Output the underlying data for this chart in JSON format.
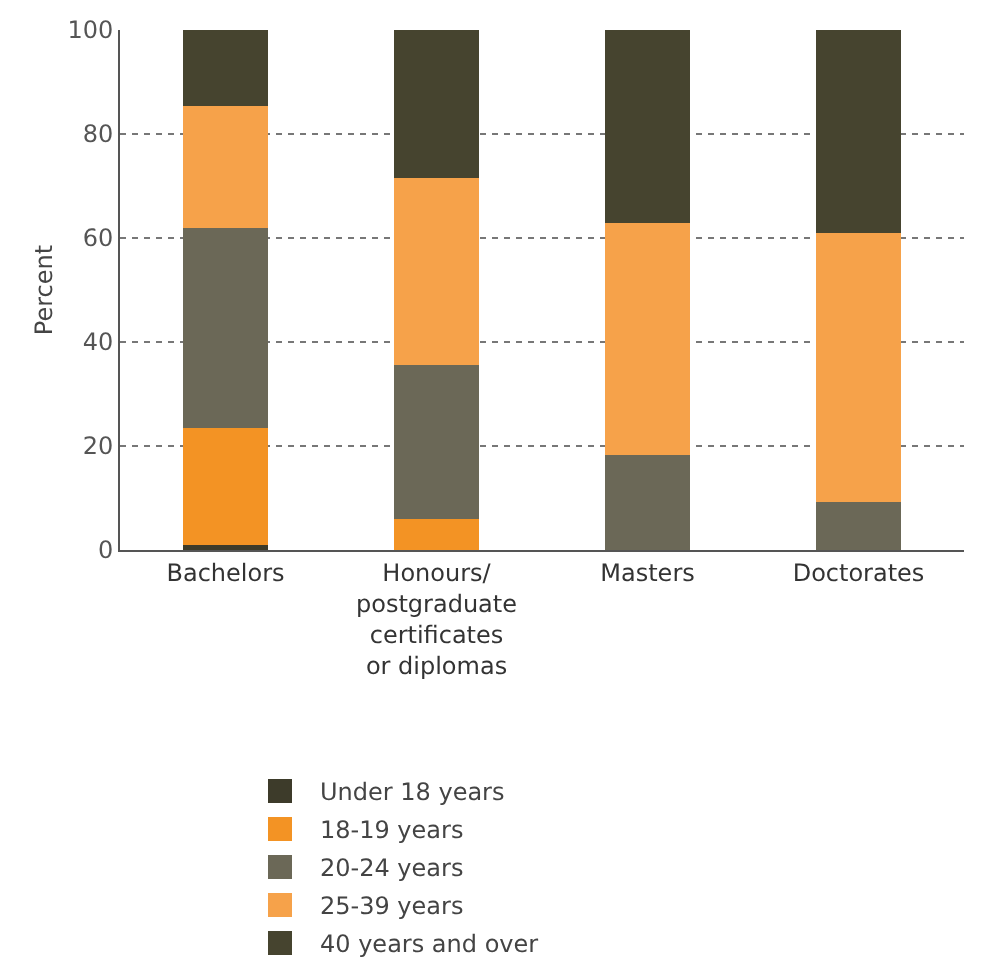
{
  "chart_data": {
    "type": "bar",
    "stacked": true,
    "ylabel": "Percent",
    "categories": [
      "Bachelors",
      "Honours/ postgraduate certificates or diplomas",
      "Masters",
      "Doctorates"
    ],
    "series": [
      {
        "name": "Under 18 years",
        "color": "#3d3b2a",
        "values": [
          1,
          0,
          0,
          0
        ]
      },
      {
        "name": "18-19 years",
        "color": "#f39324",
        "values": [
          22.5,
          6,
          0,
          0
        ]
      },
      {
        "name": "20-24 years",
        "color": "#6b6857",
        "values": [
          38.4,
          29.5,
          18.2,
          9.2
        ]
      },
      {
        "name": "25-39 years",
        "color": "#f6a24a",
        "values": [
          23.5,
          36,
          44.7,
          51.7
        ]
      },
      {
        "name": "40 years and over",
        "color": "#46442f",
        "values": [
          14.6,
          28.5,
          37.1,
          39.1
        ]
      }
    ],
    "ylim": [
      0,
      100
    ],
    "yticks": [
      0,
      20,
      40,
      60,
      80,
      100
    ],
    "grid": "y",
    "legend": "bottom"
  }
}
